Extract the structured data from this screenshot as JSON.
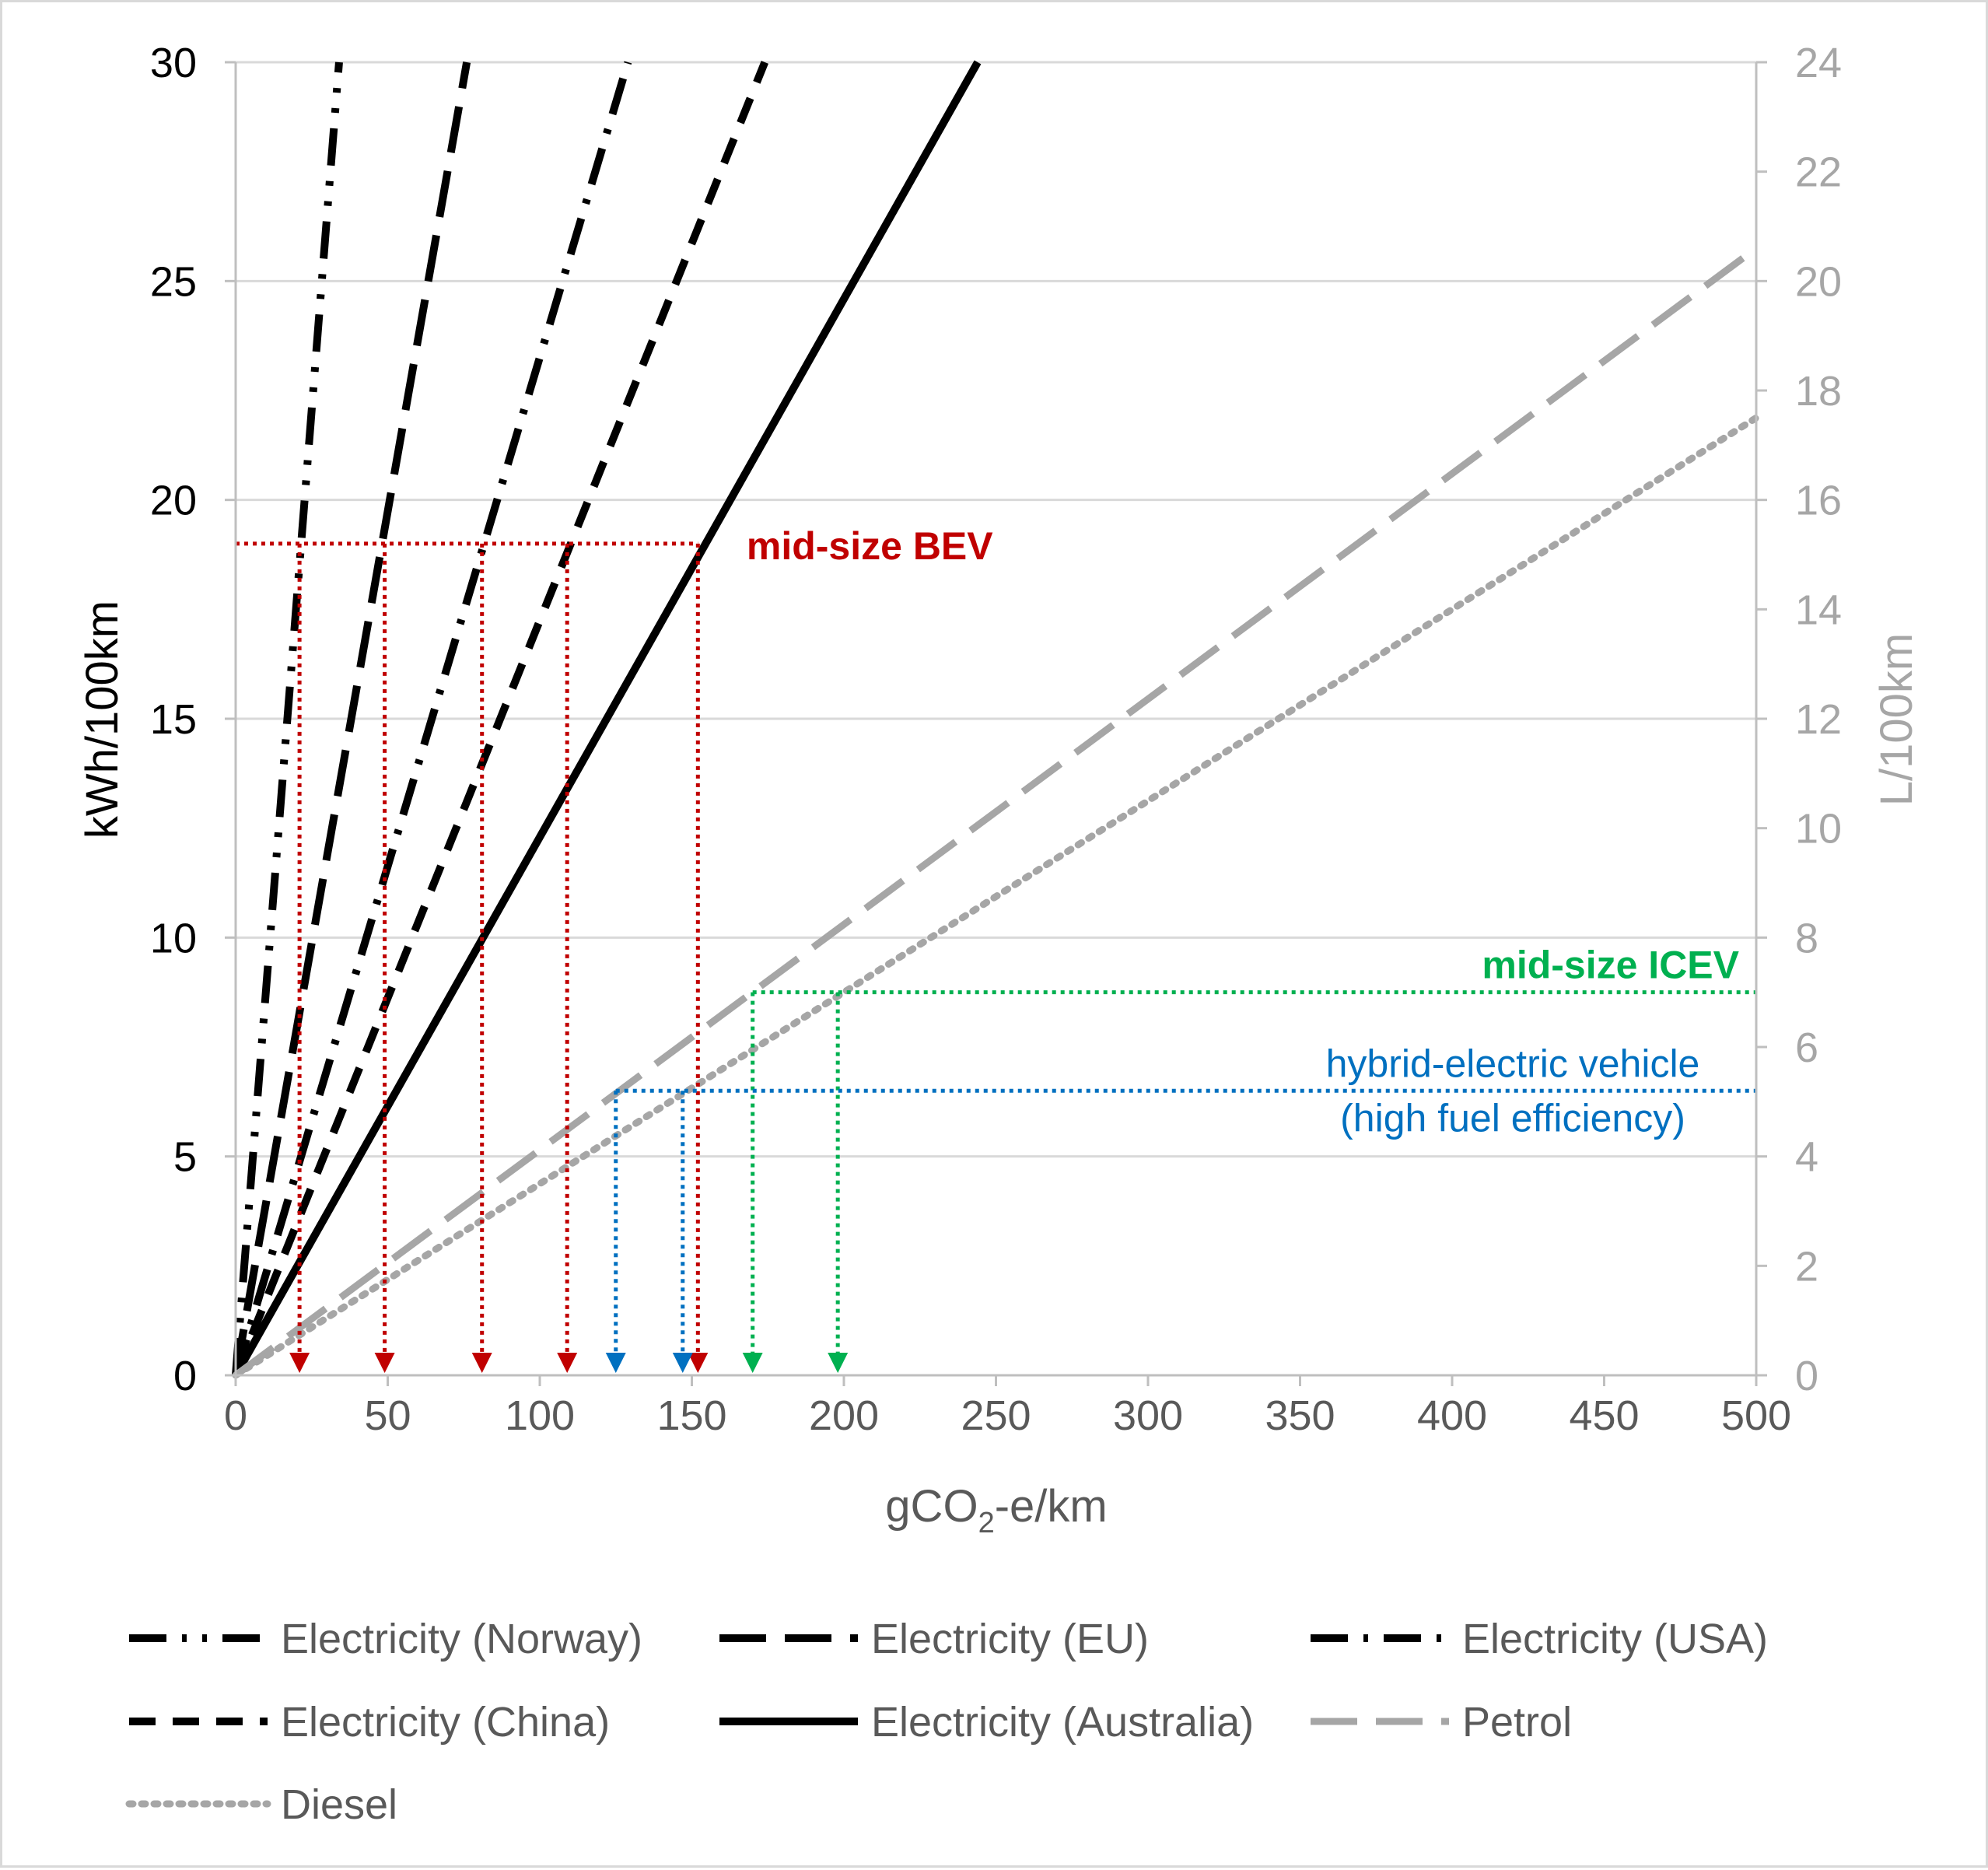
{
  "chart_data": {
    "type": "line",
    "xlabel": {
      "main": "gCO",
      "sub": "2",
      "rest": "-e/km"
    },
    "ylabel_left": "kWh/100km",
    "ylabel_right": "L/100km",
    "xlim": [
      0,
      500
    ],
    "ylim_left": [
      0,
      30
    ],
    "ylim_right": [
      0,
      24
    ],
    "x_ticks": [
      0,
      50,
      100,
      150,
      200,
      250,
      300,
      350,
      400,
      450,
      500
    ],
    "y_ticks_left": [
      0,
      5,
      10,
      15,
      20,
      25,
      30
    ],
    "y_ticks_right": [
      0,
      2,
      4,
      6,
      8,
      10,
      12,
      14,
      16,
      18,
      20,
      22,
      24
    ],
    "grid": "horizontal",
    "legend_position": "bottom",
    "series": [
      {
        "name": "Electricity (Norway)",
        "axis": "left",
        "color": "#000000",
        "dash": "dash-dot-dot",
        "x": [
          0,
          34
        ],
        "y": [
          0,
          30
        ]
      },
      {
        "name": "Electricity (EU)",
        "axis": "left",
        "color": "#000000",
        "dash": "long-dash",
        "x": [
          0,
          76
        ],
        "y": [
          0,
          30
        ]
      },
      {
        "name": "Electricity (USA)",
        "axis": "left",
        "color": "#000000",
        "dash": "dash-dot",
        "x": [
          0,
          129
        ],
        "y": [
          0,
          30
        ]
      },
      {
        "name": "Electricity (China)",
        "axis": "left",
        "color": "#000000",
        "dash": "dash",
        "x": [
          0,
          174
        ],
        "y": [
          0,
          30
        ]
      },
      {
        "name": "Electricity (Australia)",
        "axis": "left",
        "color": "#000000",
        "dash": "solid",
        "x": [
          0,
          244
        ],
        "y": [
          0,
          30
        ]
      },
      {
        "name": "Petrol",
        "axis": "right",
        "color": "#a6a6a6",
        "dash": "long-dash",
        "x": [
          0,
          500
        ],
        "y": [
          0,
          20.6
        ]
      },
      {
        "name": "Diesel",
        "axis": "right",
        "color": "#a6a6a6",
        "dash": "dot",
        "x": [
          0,
          500
        ],
        "y": [
          0,
          17.5
        ]
      }
    ],
    "annotations": [
      {
        "label": "mid-size BEV",
        "color": "#c00000",
        "axis": "left",
        "y": 19,
        "x_from": 0,
        "x_label": 168,
        "drops": [
          21,
          49,
          81,
          109,
          152
        ]
      },
      {
        "label": "mid-size ICEV",
        "color": "#00b050",
        "axis": "right",
        "y": 7.0,
        "x_from": 170,
        "x_to": 500,
        "drops": [
          170,
          198
        ]
      },
      {
        "label": "hybrid-electric vehicle",
        "label2": "(high fuel efficiency)",
        "color": "#0070c0",
        "axis": "right",
        "y": 5.2,
        "x_from": 125,
        "x_to": 500,
        "drops": [
          125,
          147
        ]
      }
    ]
  }
}
